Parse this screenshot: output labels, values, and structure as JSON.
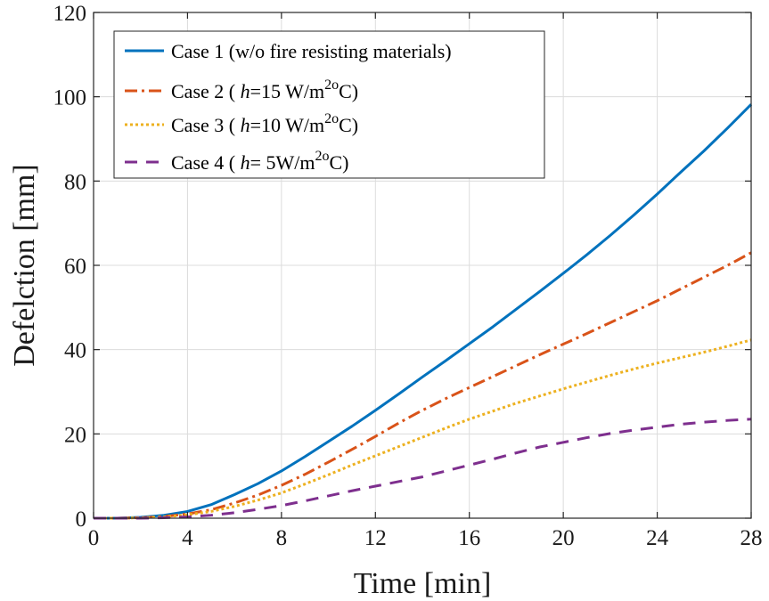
{
  "chart_data": {
    "type": "line",
    "title": "",
    "xlabel": "Time  [min]",
    "ylabel": "Defelction  [mm]",
    "xlim": [
      0,
      28
    ],
    "ylim": [
      0,
      120
    ],
    "xticks": [
      0,
      4,
      8,
      12,
      16,
      20,
      24,
      28
    ],
    "yticks": [
      0,
      20,
      40,
      60,
      80,
      100,
      120
    ],
    "grid": true,
    "legend_position": "top-left",
    "x": [
      0,
      1,
      2,
      3,
      4,
      5,
      6,
      7,
      8,
      9,
      10,
      11,
      12,
      13,
      14,
      15,
      16,
      17,
      18,
      19,
      20,
      21,
      22,
      23,
      24,
      25,
      26,
      27,
      28
    ],
    "series": [
      {
        "name": "Case 1 (w/o fire resisting materials)",
        "legend": {
          "prefix": "Case 1 (w/o fire resisting materials)",
          "h": "",
          "value": "",
          "unit_sup": ""
        },
        "color": "#0072BD",
        "dash": "solid",
        "values": [
          0,
          0,
          0.2,
          0.7,
          1.6,
          3.2,
          5.6,
          8.2,
          11.2,
          14.6,
          18.2,
          21.8,
          25.6,
          29.5,
          33.5,
          37.4,
          41.4,
          45.4,
          49.6,
          53.8,
          58.1,
          62.5,
          67.1,
          71.9,
          76.9,
          82.1,
          87.2,
          92.6,
          98.2
        ]
      },
      {
        "name": "Case 2 ( h=15 W/m2oC)",
        "legend": {
          "prefix": "Case 2 ( ",
          "h": "h",
          "value": "=15 W/m",
          "unit_sup": "2o"
        },
        "color": "#D95319",
        "dash": "dashdot",
        "values": [
          0,
          0,
          0.1,
          0.4,
          1.0,
          2.0,
          3.6,
          5.5,
          7.8,
          10.4,
          13.3,
          16.3,
          19.4,
          22.6,
          25.6,
          28.4,
          31.0,
          33.6,
          36.2,
          38.8,
          41.3,
          43.8,
          46.4,
          49.0,
          51.6,
          54.4,
          57.2,
          60.0,
          63.0
        ]
      },
      {
        "name": "Case 3 ( h=10 W/m2oC)",
        "legend": {
          "prefix": "Case 3 ( ",
          "h": "h",
          "value": "=10 W/m",
          "unit_sup": "2o"
        },
        "color": "#EDB120",
        "dash": "dotted",
        "values": [
          0,
          0,
          0.1,
          0.3,
          0.8,
          1.6,
          2.8,
          4.3,
          6.0,
          8.1,
          10.3,
          12.6,
          14.8,
          17.0,
          19.2,
          21.4,
          23.5,
          25.4,
          27.3,
          29.0,
          30.7,
          32.3,
          33.9,
          35.4,
          36.8,
          38.1,
          39.4,
          40.8,
          42.3
        ]
      },
      {
        "name": "Case 4 ( h= 5W/m2oC)",
        "legend": {
          "prefix": "Case 4 ( ",
          "h": "h",
          "value": "= 5W/m",
          "unit_sup": "2o"
        },
        "color": "#7E2F8E",
        "dash": "dashed",
        "values": [
          0,
          0,
          0,
          0.1,
          0.3,
          0.7,
          1.3,
          2.1,
          3.0,
          4.1,
          5.3,
          6.5,
          7.6,
          8.7,
          9.8,
          11.2,
          12.6,
          14.0,
          15.5,
          16.9,
          18.0,
          19.1,
          20.1,
          20.9,
          21.6,
          22.3,
          22.8,
          23.2,
          23.5
        ]
      }
    ]
  }
}
